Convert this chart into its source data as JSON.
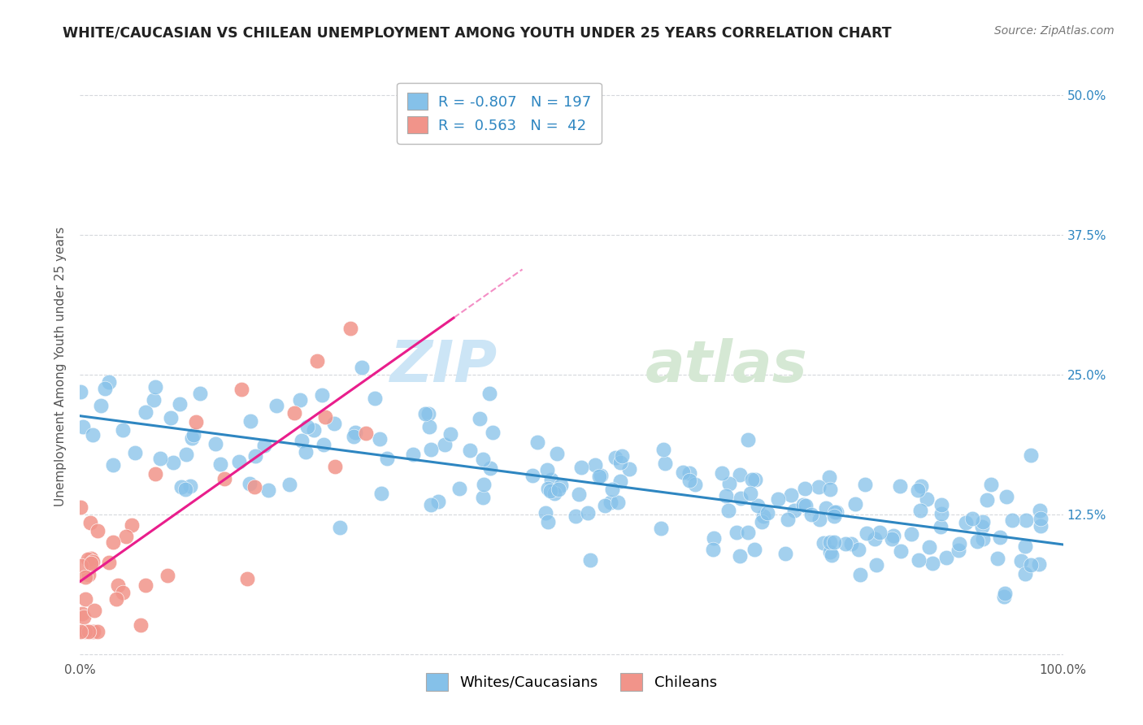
{
  "title": "WHITE/CAUCASIAN VS CHILEAN UNEMPLOYMENT AMONG YOUTH UNDER 25 YEARS CORRELATION CHART",
  "source": "Source: ZipAtlas.com",
  "ylabel": "Unemployment Among Youth under 25 years",
  "legend_blue_label": "Whites/Caucasians",
  "legend_pink_label": "Chileans",
  "blue_color": "#85c1e9",
  "pink_color": "#f1948a",
  "blue_line_color": "#2e86c1",
  "pink_line_color": "#e91e8c",
  "watermark_zip": "ZIP",
  "watermark_atlas": "atlas",
  "background_color": "#ffffff",
  "plot_bg_color": "#ffffff",
  "grid_color": "#d5d8dc",
  "xlim": [
    0.0,
    1.0
  ],
  "ylim": [
    -0.005,
    0.52
  ],
  "blue_N": 197,
  "pink_N": 42,
  "blue_intercept": 0.213,
  "blue_slope": -0.115,
  "pink_intercept": 0.065,
  "pink_slope": 0.62,
  "title_fontsize": 12.5,
  "source_fontsize": 10,
  "label_fontsize": 11,
  "tick_fontsize": 11,
  "legend_fontsize": 13,
  "watermark_fontsize_zip": 52,
  "watermark_fontsize_atlas": 52
}
